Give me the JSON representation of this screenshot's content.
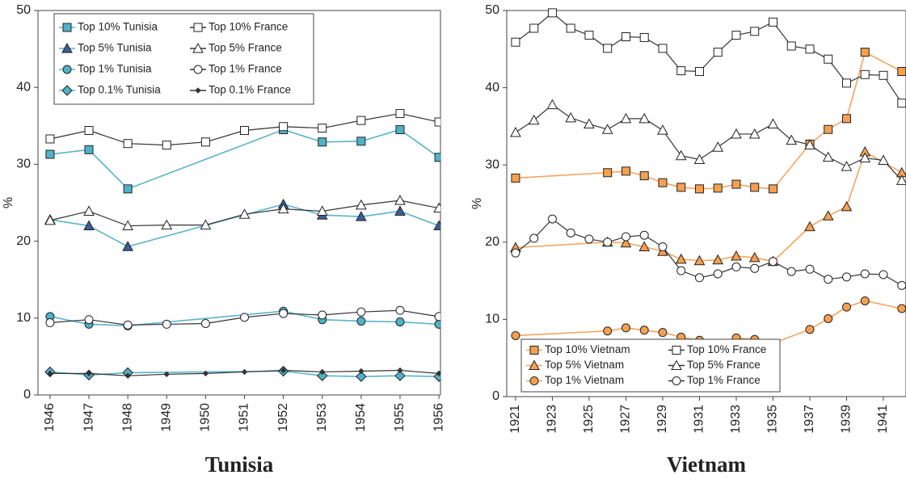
{
  "chart_data": [
    {
      "type": "line",
      "title": "Tunisia",
      "ylabel": "%",
      "xlim": [
        1945.69,
        1956.04
      ],
      "ylim": [
        0,
        50
      ],
      "xticks": [
        1946,
        1947,
        1948,
        1949,
        1950,
        1951,
        1952,
        1953,
        1954,
        1955,
        1956
      ],
      "yticks": [
        0,
        10,
        20,
        30,
        40,
        50
      ],
      "legend": "upper left",
      "series": [
        {
          "name": "Top 10% Tunisia",
          "color": "#5ab4c8",
          "fill": "#4fb3c8",
          "marker": "square",
          "x": [
            1946,
            1947,
            1948,
            1952,
            1953,
            1954,
            1955,
            1956
          ],
          "values": [
            31.3,
            31.9,
            26.8,
            34.5,
            32.9,
            33.0,
            34.5,
            30.9
          ]
        },
        {
          "name": "Top 10% France",
          "color": "#333333",
          "fill": "#ffffff",
          "marker": "square",
          "x": [
            1946,
            1947,
            1948,
            1949,
            1950,
            1951,
            1952,
            1953,
            1954,
            1955,
            1956
          ],
          "values": [
            33.3,
            34.4,
            32.7,
            32.5,
            32.9,
            34.4,
            34.9,
            34.7,
            35.7,
            36.6,
            35.5
          ]
        },
        {
          "name": "Top 5% Tunisia",
          "color": "#5ab4c8",
          "fill": "#3a5f9a",
          "marker": "triangle",
          "x": [
            1946,
            1947,
            1948,
            1952,
            1953,
            1954,
            1955,
            1956
          ],
          "values": [
            22.8,
            22.0,
            19.3,
            24.8,
            23.4,
            23.2,
            23.9,
            22.0
          ]
        },
        {
          "name": "Top 5% France",
          "color": "#333333",
          "fill": "#ffffff",
          "marker": "triangle",
          "x": [
            1946,
            1947,
            1948,
            1949,
            1950,
            1951,
            1952,
            1953,
            1954,
            1955,
            1956
          ],
          "values": [
            22.7,
            23.9,
            22.0,
            22.1,
            22.1,
            23.5,
            24.2,
            23.9,
            24.7,
            25.3,
            24.3
          ]
        },
        {
          "name": "Top 1% Tunisia",
          "color": "#5ab4c8",
          "fill": "#4fb3c8",
          "marker": "circle",
          "x": [
            1946,
            1947,
            1948,
            1952,
            1953,
            1954,
            1955,
            1956
          ],
          "values": [
            10.2,
            9.2,
            9.0,
            10.9,
            9.8,
            9.6,
            9.5,
            9.2
          ]
        },
        {
          "name": "Top 1% France",
          "color": "#333333",
          "fill": "#ffffff",
          "marker": "circle",
          "x": [
            1946,
            1947,
            1948,
            1949,
            1950,
            1951,
            1952,
            1953,
            1954,
            1955,
            1956
          ],
          "values": [
            9.4,
            9.8,
            9.1,
            9.2,
            9.3,
            10.1,
            10.6,
            10.4,
            10.8,
            11.0,
            10.2
          ]
        },
        {
          "name": "Top 0.1% Tunisia",
          "color": "#5ab4c8",
          "fill": "#4fb3c8",
          "marker": "diamond",
          "x": [
            1946,
            1947,
            1948,
            1952,
            1953,
            1954,
            1955,
            1956
          ],
          "values": [
            3.0,
            2.6,
            2.9,
            3.1,
            2.5,
            2.4,
            2.5,
            2.4
          ]
        },
        {
          "name": "Top 0.1% France",
          "color": "#333333",
          "fill": "#333333",
          "marker": "small-diamond",
          "x": [
            1946,
            1947,
            1948,
            1949,
            1950,
            1951,
            1952,
            1953,
            1954,
            1955,
            1956
          ],
          "values": [
            2.8,
            2.8,
            2.5,
            2.7,
            2.8,
            3.0,
            3.2,
            3.0,
            3.1,
            3.2,
            2.8
          ]
        }
      ]
    },
    {
      "type": "line",
      "title": "Vietnam",
      "ylabel": "%",
      "xlim": [
        1920.52,
        1942.23
      ],
      "ylim": [
        0,
        50
      ],
      "xticks": [
        1921,
        1923,
        1925,
        1927,
        1929,
        1931,
        1933,
        1935,
        1937,
        1939,
        1941
      ],
      "yticks": [
        0,
        10,
        20,
        30,
        40,
        50
      ],
      "legend": "lower left",
      "series": [
        {
          "name": "Top 10% Vietnam",
          "color": "#f4a460",
          "fill": "#f5a050",
          "marker": "square",
          "x": [
            1921,
            1926,
            1927,
            1928,
            1929,
            1930,
            1931,
            1932,
            1933,
            1934,
            1935,
            1937,
            1938,
            1939,
            1940,
            1942
          ],
          "values": [
            28.3,
            29.0,
            29.2,
            28.6,
            27.7,
            27.1,
            26.9,
            27.0,
            27.5,
            27.1,
            26.9,
            32.7,
            34.6,
            36.0,
            44.6,
            42.1
          ]
        },
        {
          "name": "Top 10% France",
          "color": "#333333",
          "fill": "#ffffff",
          "marker": "square",
          "x": [
            1921,
            1922,
            1923,
            1924,
            1925,
            1926,
            1927,
            1928,
            1929,
            1930,
            1931,
            1932,
            1933,
            1934,
            1935,
            1936,
            1937,
            1938,
            1939,
            1940,
            1941,
            1942
          ],
          "values": [
            45.9,
            47.7,
            49.7,
            47.7,
            46.8,
            45.1,
            46.6,
            46.5,
            45.1,
            42.2,
            42.1,
            44.6,
            46.8,
            47.3,
            48.5,
            45.4,
            45.0,
            43.7,
            40.6,
            41.7,
            41.6,
            38.0
          ]
        },
        {
          "name": "Top 5% Vietnam",
          "color": "#f4a460",
          "fill": "#f5a050",
          "marker": "triangle",
          "x": [
            1921,
            1926,
            1927,
            1928,
            1929,
            1930,
            1931,
            1932,
            1933,
            1934,
            1935,
            1937,
            1938,
            1939,
            1940,
            1942
          ],
          "values": [
            19.3,
            20.0,
            19.9,
            19.4,
            18.8,
            17.8,
            17.6,
            17.7,
            18.2,
            18.0,
            17.5,
            22.0,
            23.4,
            24.6,
            31.7,
            29.0
          ]
        },
        {
          "name": "Top 5% France",
          "color": "#333333",
          "fill": "#ffffff",
          "marker": "triangle",
          "x": [
            1921,
            1922,
            1923,
            1924,
            1925,
            1926,
            1927,
            1928,
            1929,
            1930,
            1931,
            1932,
            1933,
            1934,
            1935,
            1936,
            1937,
            1938,
            1939,
            1940,
            1941,
            1942
          ],
          "values": [
            34.2,
            35.8,
            37.8,
            36.1,
            35.3,
            34.6,
            36.0,
            36.0,
            34.5,
            31.2,
            30.7,
            32.3,
            34.0,
            34.0,
            35.3,
            33.2,
            32.6,
            31.0,
            29.8,
            30.9,
            30.6,
            28.0
          ]
        },
        {
          "name": "Top 1% Vietnam",
          "color": "#f4a460",
          "fill": "#f5a050",
          "marker": "circle",
          "x": [
            1921,
            1926,
            1927,
            1928,
            1929,
            1930,
            1931,
            1932,
            1933,
            1934,
            1935,
            1937,
            1938,
            1939,
            1940,
            1942
          ],
          "values": [
            7.9,
            8.5,
            8.9,
            8.6,
            8.3,
            7.7,
            7.3,
            5.9,
            7.6,
            7.4,
            6.9,
            8.7,
            10.1,
            11.6,
            12.4,
            11.4
          ]
        },
        {
          "name": "Top 1% France",
          "color": "#333333",
          "fill": "#ffffff",
          "marker": "circle",
          "x": [
            1921,
            1922,
            1923,
            1924,
            1925,
            1926,
            1927,
            1928,
            1929,
            1930,
            1931,
            1932,
            1933,
            1934,
            1935,
            1936,
            1937,
            1938,
            1939,
            1940,
            1941,
            1942
          ],
          "values": [
            18.6,
            20.5,
            23.0,
            21.2,
            20.4,
            20.0,
            20.7,
            20.9,
            19.4,
            16.3,
            15.4,
            15.9,
            16.8,
            16.6,
            17.5,
            16.2,
            16.5,
            15.2,
            15.5,
            15.9,
            15.8,
            14.4
          ]
        }
      ]
    }
  ]
}
